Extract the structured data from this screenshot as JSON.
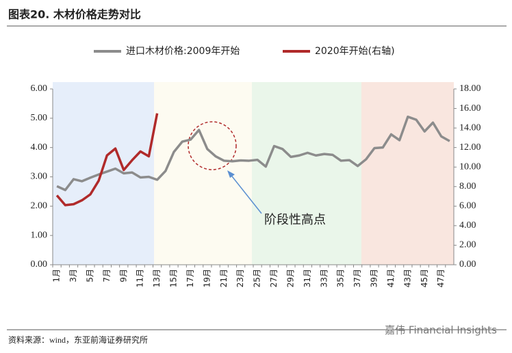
{
  "title": "图表20. 木材价格走势对比",
  "source": "资料来源：wind，东亚前海证券研究所",
  "watermark": "嘉伟 Financial Insights",
  "chart_data": {
    "type": "line",
    "annotation": "阶段性高点",
    "categories": [
      "1月",
      null,
      "3月",
      null,
      "5月",
      null,
      "7月",
      null,
      "9月",
      null,
      "11月",
      null,
      "13月",
      null,
      "15月",
      null,
      "17月",
      null,
      "19月",
      null,
      "21月",
      null,
      "23月",
      null,
      "25月",
      null,
      "27月",
      null,
      "29月",
      null,
      "31月",
      null,
      "33月",
      null,
      "35月",
      null,
      "37月",
      null,
      "39月",
      null,
      "41月",
      null,
      "43月",
      null,
      "45月",
      null,
      "47月",
      null
    ],
    "series": [
      {
        "name": "进口木材价格:2009年开始",
        "color": "#8c8c8c",
        "values": [
          2.68,
          2.55,
          2.92,
          2.85,
          2.97,
          3.08,
          3.18,
          3.28,
          3.12,
          3.15,
          2.98,
          3.0,
          2.9,
          3.2,
          3.85,
          4.2,
          4.27,
          4.6,
          3.95,
          3.7,
          3.55,
          3.53,
          3.56,
          3.55,
          3.58,
          3.35,
          4.05,
          3.95,
          3.68,
          3.73,
          3.82,
          3.73,
          3.78,
          3.75,
          3.55,
          3.57,
          3.37,
          3.6,
          3.98,
          4.0,
          4.45,
          4.25,
          5.05,
          4.95,
          4.55,
          4.85,
          4.38,
          4.22
        ]
      },
      {
        "name": "2020年开始(右轴)",
        "color": "#b02a2a",
        "axis": "y2",
        "values": [
          7.1,
          6.1,
          6.2,
          6.6,
          7.2,
          8.6,
          11.2,
          11.9,
          9.7,
          10.7,
          11.6,
          11.1,
          15.5,
          null,
          null,
          null,
          null,
          null,
          null,
          null,
          null,
          null,
          null,
          null,
          null,
          null,
          null,
          null,
          null,
          null,
          null,
          null,
          null,
          null,
          null,
          null,
          null,
          null,
          null,
          null,
          null,
          null,
          null,
          null,
          null,
          null,
          null,
          null
        ]
      }
    ],
    "ylim": [
      0,
      6
    ],
    "yticks": [
      {
        "value": 0,
        "label": "0.00"
      },
      {
        "value": 1,
        "label": "1.00"
      },
      {
        "value": 2,
        "label": "2.00"
      },
      {
        "value": 3,
        "label": "3.00"
      },
      {
        "value": 4,
        "label": "4.00"
      },
      {
        "value": 5,
        "label": "5.00"
      },
      {
        "value": 6,
        "label": "6.00"
      }
    ],
    "y2lim": [
      0,
      18
    ],
    "y2ticks": [
      {
        "value": 0,
        "label": "0.00"
      },
      {
        "value": 2,
        "label": "2.00"
      },
      {
        "value": 4,
        "label": "4.00"
      },
      {
        "value": 6,
        "label": "6.00"
      },
      {
        "value": 8,
        "label": "8.00"
      },
      {
        "value": 10,
        "label": "10.00"
      },
      {
        "value": 12,
        "label": "12.00"
      },
      {
        "value": 14,
        "label": "14.00"
      },
      {
        "value": 16,
        "label": "16.00"
      },
      {
        "value": 18,
        "label": "18.00"
      }
    ]
  }
}
